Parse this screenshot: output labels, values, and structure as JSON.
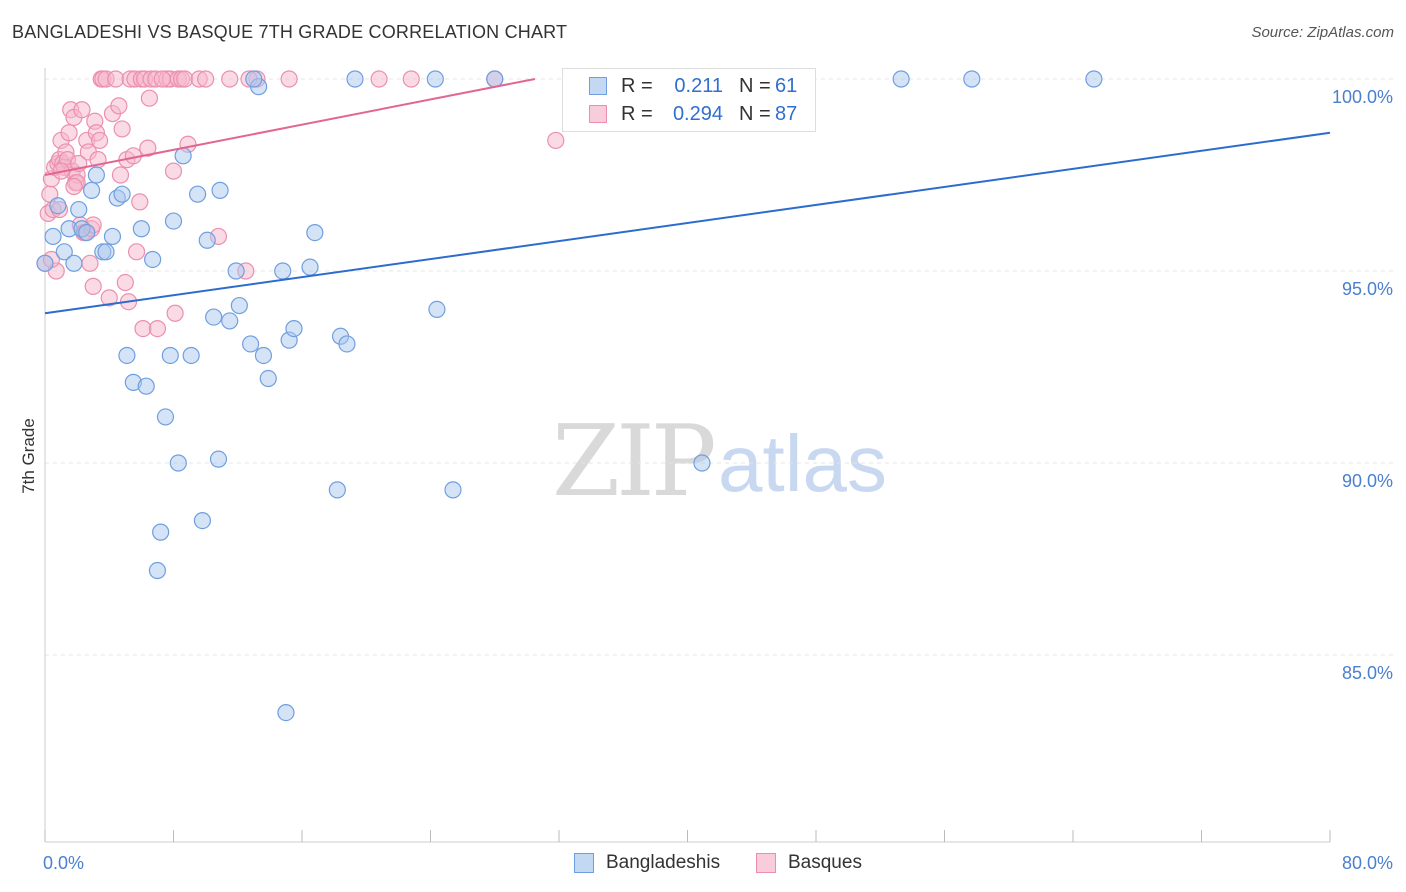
{
  "title": "BANGLADESHI VS BASQUE 7TH GRADE CORRELATION CHART",
  "source": "Source: ZipAtlas.com",
  "watermark": {
    "zip": "ZIP",
    "atlas": "atlas"
  },
  "legend": {
    "blue": {
      "r_label": "R =",
      "r_value": "0.211",
      "n_label": "N =",
      "n_value": "61"
    },
    "pink": {
      "r_label": "R =",
      "r_value": "0.294",
      "n_label": "N =",
      "n_value": "87"
    }
  },
  "bottom_legend": {
    "blue": "Bangladeshis",
    "pink": "Basques"
  },
  "colors": {
    "blue_fill": "#a9c8ee",
    "blue_stroke": "#6f9fe0",
    "blue_line": "#2d6ccd",
    "pink_fill": "#f6b8cc",
    "pink_stroke": "#ec8fae",
    "pink_line": "#e2668f",
    "tick_text": "#4a7fcf",
    "grid": "#e4e4e4"
  },
  "chart_data": {
    "type": "scatter",
    "title": "BANGLADESHI VS BASQUE 7TH GRADE CORRELATION CHART",
    "xlabel": "",
    "ylabel": "7th Grade",
    "xlim": [
      0,
      80
    ],
    "ylim": [
      80.4,
      101.0
    ],
    "x_tick_labels": [
      "0.0%",
      "80.0%"
    ],
    "y_ticks": [
      85,
      90,
      95,
      100
    ],
    "y_tick_labels": [
      "85.0%",
      "90.0%",
      "95.0%",
      "100.0%"
    ],
    "series": [
      {
        "name": "Bangladeshis",
        "r": 0.211,
        "n": 61,
        "trend": {
          "x": [
            0,
            80
          ],
          "y": [
            93.9,
            98.6
          ]
        },
        "points": [
          [
            0.0,
            95.2
          ],
          [
            0.5,
            95.9
          ],
          [
            0.8,
            96.7
          ],
          [
            1.2,
            95.5
          ],
          [
            1.5,
            96.1
          ],
          [
            1.8,
            95.2
          ],
          [
            2.1,
            96.6
          ],
          [
            2.3,
            96.1
          ],
          [
            2.6,
            96.0
          ],
          [
            2.9,
            97.1
          ],
          [
            3.2,
            97.5
          ],
          [
            3.6,
            95.5
          ],
          [
            3.8,
            95.5
          ],
          [
            4.2,
            95.9
          ],
          [
            4.5,
            96.9
          ],
          [
            4.8,
            97.0
          ],
          [
            5.1,
            92.8
          ],
          [
            5.5,
            92.1
          ],
          [
            6.0,
            96.1
          ],
          [
            6.3,
            92.0
          ],
          [
            6.7,
            95.3
          ],
          [
            7.0,
            87.2
          ],
          [
            7.2,
            88.2
          ],
          [
            7.5,
            91.2
          ],
          [
            7.8,
            92.8
          ],
          [
            8.0,
            96.3
          ],
          [
            8.3,
            90.0
          ],
          [
            8.6,
            98.0
          ],
          [
            9.1,
            92.8
          ],
          [
            9.5,
            97.0
          ],
          [
            9.8,
            88.5
          ],
          [
            10.1,
            95.8
          ],
          [
            10.5,
            93.8
          ],
          [
            10.8,
            90.1
          ],
          [
            10.9,
            97.1
          ],
          [
            11.5,
            93.7
          ],
          [
            11.9,
            95.0
          ],
          [
            12.1,
            94.1
          ],
          [
            12.8,
            93.1
          ],
          [
            13.3,
            99.8
          ],
          [
            13.6,
            92.8
          ],
          [
            13.9,
            92.2
          ],
          [
            14.8,
            95.0
          ],
          [
            15.0,
            83.5
          ],
          [
            15.2,
            93.2
          ],
          [
            15.5,
            93.5
          ],
          [
            16.5,
            95.1
          ],
          [
            16.8,
            96.0
          ],
          [
            18.2,
            89.3
          ],
          [
            18.4,
            93.3
          ],
          [
            18.8,
            93.1
          ],
          [
            19.3,
            100.0
          ],
          [
            24.3,
            100.0
          ],
          [
            24.4,
            94.0
          ],
          [
            25.4,
            89.3
          ],
          [
            28.0,
            100.0
          ],
          [
            13.0,
            100.0
          ],
          [
            40.9,
            90.0
          ],
          [
            53.3,
            100.0
          ],
          [
            57.7,
            100.0
          ],
          [
            65.3,
            100.0
          ]
        ]
      },
      {
        "name": "Basques",
        "r": 0.294,
        "n": 87,
        "trend": {
          "x": [
            0,
            30.5
          ],
          "y": [
            97.5,
            100.0
          ]
        },
        "points": [
          [
            0.0,
            95.2
          ],
          [
            0.2,
            96.5
          ],
          [
            0.3,
            97.0
          ],
          [
            0.4,
            97.4
          ],
          [
            0.5,
            96.6
          ],
          [
            0.6,
            97.7
          ],
          [
            0.7,
            95.0
          ],
          [
            0.8,
            97.8
          ],
          [
            0.9,
            97.9
          ],
          [
            1.0,
            98.4
          ],
          [
            1.1,
            97.8
          ],
          [
            1.2,
            97.7
          ],
          [
            1.3,
            98.1
          ],
          [
            1.4,
            97.9
          ],
          [
            1.5,
            98.6
          ],
          [
            1.6,
            99.2
          ],
          [
            1.7,
            97.6
          ],
          [
            1.8,
            99.0
          ],
          [
            1.9,
            97.3
          ],
          [
            2.0,
            97.5
          ],
          [
            2.1,
            97.8
          ],
          [
            2.2,
            96.2
          ],
          [
            2.3,
            99.2
          ],
          [
            2.4,
            96.0
          ],
          [
            2.5,
            96.0
          ],
          [
            2.6,
            98.4
          ],
          [
            2.7,
            98.1
          ],
          [
            2.8,
            95.2
          ],
          [
            2.9,
            96.1
          ],
          [
            3.0,
            94.6
          ],
          [
            3.1,
            98.9
          ],
          [
            3.2,
            98.6
          ],
          [
            3.3,
            97.9
          ],
          [
            3.4,
            98.4
          ],
          [
            3.5,
            100.0
          ],
          [
            3.6,
            100.0
          ],
          [
            3.8,
            100.0
          ],
          [
            4.0,
            94.3
          ],
          [
            4.2,
            99.1
          ],
          [
            4.4,
            100.0
          ],
          [
            4.6,
            99.3
          ],
          [
            4.7,
            97.5
          ],
          [
            4.8,
            98.7
          ],
          [
            5.0,
            94.7
          ],
          [
            5.1,
            97.9
          ],
          [
            5.2,
            94.2
          ],
          [
            5.3,
            100.0
          ],
          [
            5.5,
            98.0
          ],
          [
            5.6,
            100.0
          ],
          [
            5.7,
            95.5
          ],
          [
            5.9,
            96.8
          ],
          [
            6.0,
            100.0
          ],
          [
            6.1,
            93.5
          ],
          [
            6.2,
            100.0
          ],
          [
            6.4,
            98.2
          ],
          [
            6.5,
            99.5
          ],
          [
            6.6,
            100.0
          ],
          [
            6.9,
            100.0
          ],
          [
            7.0,
            93.5
          ],
          [
            7.6,
            100.0
          ],
          [
            7.8,
            100.0
          ],
          [
            8.0,
            97.6
          ],
          [
            8.1,
            93.9
          ],
          [
            8.3,
            100.0
          ],
          [
            8.5,
            100.0
          ],
          [
            8.7,
            100.0
          ],
          [
            8.9,
            98.3
          ],
          [
            9.6,
            100.0
          ],
          [
            10.0,
            100.0
          ],
          [
            10.8,
            95.9
          ],
          [
            11.5,
            100.0
          ],
          [
            12.5,
            95.0
          ],
          [
            13.2,
            100.0
          ],
          [
            15.2,
            100.0
          ],
          [
            20.8,
            100.0
          ],
          [
            22.8,
            100.0
          ],
          [
            28.0,
            100.0
          ],
          [
            31.8,
            98.4
          ],
          [
            33.2,
            100.0
          ],
          [
            0.4,
            95.3
          ],
          [
            1.0,
            97.6
          ],
          [
            0.9,
            96.6
          ],
          [
            2.0,
            97.3
          ],
          [
            3.0,
            96.2
          ],
          [
            1.8,
            97.2
          ],
          [
            12.7,
            100.0
          ],
          [
            7.3,
            100.0
          ]
        ]
      }
    ]
  }
}
